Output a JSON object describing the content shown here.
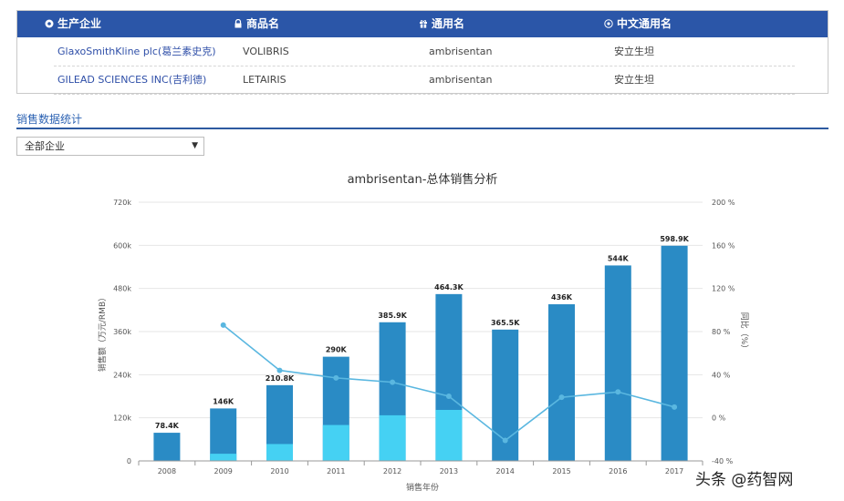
{
  "table": {
    "headers": [
      {
        "label": "生产企业",
        "icon": "gear-icon"
      },
      {
        "label": "商品名",
        "icon": "lock-icon"
      },
      {
        "label": "通用名",
        "icon": "gift-icon"
      },
      {
        "label": "中文通用名",
        "icon": "target-icon"
      }
    ],
    "rows": [
      {
        "company": "GlaxoSmithKline plc(葛兰素史克)",
        "trade_name": "VOLIBRIS",
        "generic_name": "ambrisentan",
        "chinese_name": "安立生坦"
      },
      {
        "company": "GILEAD SCIENCES INC(吉利德)",
        "trade_name": "LETAIRIS",
        "generic_name": "ambrisentan",
        "chinese_name": "安立生坦"
      }
    ]
  },
  "section": {
    "title": "销售数据统计"
  },
  "filter": {
    "selected": "全部企业",
    "arrow": "▼"
  },
  "colors": {
    "header_bg": "#2b56a8",
    "bar_dark": "#2a8bc5",
    "bar_light": "#45d1f3",
    "line": "#5ab7e0"
  },
  "chart_data": {
    "type": "bar",
    "title": "ambrisentan-总体销售分析",
    "xlabel": "销售年份",
    "ylabel": "销售额（万元/RMB）",
    "y2label": "同比（%）",
    "categories": [
      "2008",
      "2009",
      "2010",
      "2011",
      "2012",
      "2013",
      "2014",
      "2015",
      "2016",
      "2017"
    ],
    "series": [
      {
        "values": [
          78.4,
          146,
          210.8,
          290,
          385.9,
          464.3,
          365.5,
          436,
          544,
          598.9
        ]
      },
      {
        "values": [
          0,
          20,
          47,
          100,
          127,
          142,
          0,
          0,
          0,
          0
        ]
      }
    ],
    "line_series": {
      "values": [
        null,
        86,
        44,
        37,
        33,
        20,
        -21,
        19,
        24,
        10
      ]
    },
    "data_labels": [
      "78.4K",
      "146K",
      "210.8K",
      "290K",
      "385.9K",
      "464.3K",
      "365.5K",
      "436K",
      "544K",
      "598.9K"
    ],
    "ylim": [
      0,
      720
    ],
    "yticks": [
      "0",
      "120k",
      "240k",
      "360k",
      "480k",
      "600k",
      "720k"
    ],
    "y2lim": [
      -40,
      200
    ],
    "y2ticks": [
      "-40 %",
      "0 %",
      "40 %",
      "80 %",
      "120 %",
      "160 %",
      "200 %"
    ],
    "grid": true
  },
  "watermark": "头条 @药智网"
}
